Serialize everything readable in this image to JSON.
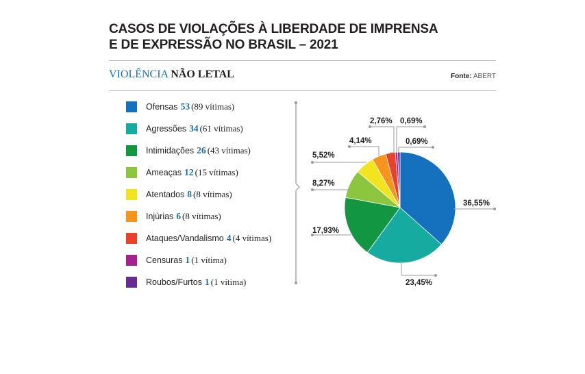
{
  "title_line1": "CASOS DE VIOLAÇÕES À LIBERDADE DE IMPRENSA",
  "title_line2": "E DE EXPRESSÃO NO BRASIL – 2021",
  "subtitle_part1": "VIOLÊNCIA",
  "subtitle_part2": "NÃO LETAL",
  "source_label": "Fonte:",
  "source_value": "ABERT",
  "chart_data": {
    "type": "pie",
    "title": "CASOS DE VIOLAÇÕES À LIBERDADE DE IMPRENSA E DE EXPRESSÃO NO BRASIL – 2021",
    "subtitle": "VIOLÊNCIA NÃO LETAL",
    "legend_position": "left",
    "slices": [
      {
        "name": "Ofensas",
        "value": 53,
        "victims": "(89 vítimas)",
        "percent": 36.55,
        "percent_label": "36,55%",
        "color": "#1570bd"
      },
      {
        "name": "Agressões",
        "value": 34,
        "victims": "(61 vítimas)",
        "percent": 23.45,
        "percent_label": "23,45%",
        "color": "#16aba1"
      },
      {
        "name": "Intimidações",
        "value": 26,
        "victims": "(43 vítimas)",
        "percent": 17.93,
        "percent_label": "17,93%",
        "color": "#139641"
      },
      {
        "name": "Ameaças",
        "value": 12,
        "victims": "(15 vítimas)",
        "percent": 8.27,
        "percent_label": "8,27%",
        "color": "#8cc63f"
      },
      {
        "name": "Atentados",
        "value": 8,
        "victims": "(8 vítimas)",
        "percent": 5.52,
        "percent_label": "5,52%",
        "color": "#f2e41f"
      },
      {
        "name": "Injúrias",
        "value": 6,
        "victims": "(8 vítimas)",
        "percent": 4.14,
        "percent_label": "4,14%",
        "color": "#f7941d"
      },
      {
        "name": "Ataques/Vandalismo",
        "value": 4,
        "victims": "(4 vítimas)",
        "percent": 2.76,
        "percent_label": "2,76%",
        "color": "#e8412c"
      },
      {
        "name": "Censuras",
        "value": 1,
        "victims": "(1 vítima)",
        "percent": 0.69,
        "percent_label": "0,69%",
        "color": "#a3238e"
      },
      {
        "name": "Roubos/Furtos",
        "value": 1,
        "victims": "(1 vítima)",
        "percent": 0.69,
        "percent_label": "0,69%",
        "color": "#662d91"
      }
    ]
  }
}
